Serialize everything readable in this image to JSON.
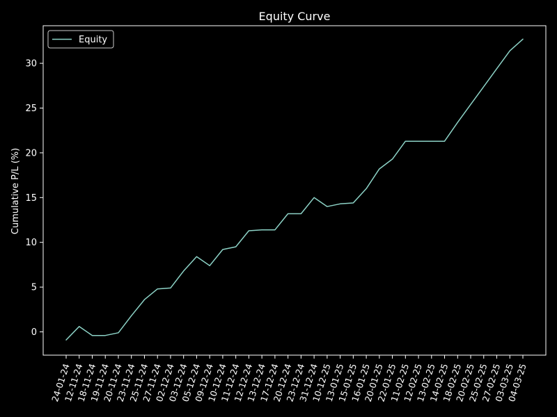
{
  "chart_data": {
    "type": "line",
    "title": "Equity Curve",
    "xlabel": "",
    "ylabel": "Cumulative P/L (%)",
    "ylim": [
      -2.6,
      34.2
    ],
    "yticks": [
      0,
      5,
      10,
      15,
      20,
      25,
      30
    ],
    "grid": false,
    "legend_position": "upper-left",
    "colors": {
      "background": "#000000",
      "axes": "#ffffff",
      "text": "#ffffff",
      "line": "#8dd3c7"
    },
    "categories": [
      "24-01-24",
      "12-11-24",
      "18-11-24",
      "19-11-24",
      "20-11-24",
      "23-11-24",
      "25-11-24",
      "27-11-24",
      "02-12-24",
      "03-12-24",
      "05-12-24",
      "09-12-24",
      "10-12-24",
      "11-12-24",
      "12-12-24",
      "13-12-24",
      "17-12-24",
      "20-12-24",
      "23-12-24",
      "31-12-24",
      "10-12-25",
      "13-01-25",
      "15-01-25",
      "16-01-25",
      "20-01-25",
      "22-01-25",
      "11-02-25",
      "12-02-25",
      "13-02-25",
      "14-02-25",
      "18-02-25",
      "20-02-25",
      "25-02-25",
      "27-02-25",
      "03-03-25",
      "04-03-25"
    ],
    "series": [
      {
        "name": "Equity",
        "values": [
          -0.9,
          0.6,
          -0.4,
          -0.4,
          -0.1,
          1.8,
          3.6,
          4.8,
          4.9,
          6.8,
          8.4,
          7.4,
          9.2,
          9.5,
          11.3,
          11.4,
          11.4,
          13.2,
          13.2,
          15.0,
          14.0,
          14.3,
          14.4,
          16.0,
          18.2,
          19.3,
          21.3,
          21.3,
          21.3,
          21.3,
          23.4,
          25.4,
          27.4,
          29.4,
          31.4,
          32.7
        ]
      }
    ]
  }
}
